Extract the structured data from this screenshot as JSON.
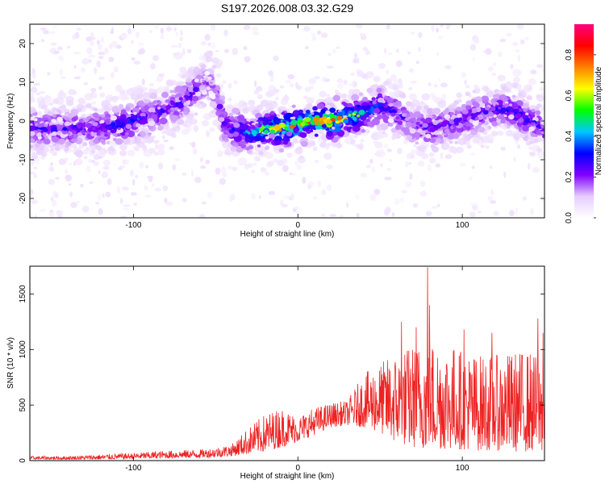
{
  "figure": {
    "title": "S197.2026.008.03.32.G29"
  },
  "chart_data": [
    {
      "type": "heatmap",
      "xlabel": "Height of straight line (km)",
      "ylabel": "Frequency (Hz)",
      "xlim": [
        -163,
        150
      ],
      "ylim": [
        -25,
        25
      ],
      "x_ticks": [
        -100,
        0,
        100
      ],
      "y_ticks": [
        -20,
        -10,
        0,
        10,
        20
      ],
      "grid": false,
      "colorbar": {
        "label": "Normalized spectral amplitude",
        "range": [
          0,
          0.95
        ],
        "ticks": [
          0.0,
          0.2,
          0.4,
          0.6,
          0.8
        ],
        "colors": [
          "#ffffff",
          "#e6ccff",
          "#8000ff",
          "#0000ff",
          "#00c8ff",
          "#00ff00",
          "#ffff00",
          "#ff8000",
          "#ff0000",
          "#ff0080"
        ]
      },
      "ridge": {
        "x": [
          -140,
          -120,
          -100,
          -90,
          -80,
          -70,
          -60,
          -55,
          -50,
          -45,
          -40,
          -30,
          -20,
          -10,
          0,
          10,
          20,
          30,
          40,
          50,
          60,
          70,
          80,
          90,
          100,
          110,
          120,
          130,
          140,
          150
        ],
        "frequency": [
          -2,
          -2,
          0,
          1,
          3,
          5,
          9,
          10,
          8,
          -1,
          -2,
          -3,
          -2,
          -2,
          -1,
          0,
          0,
          1,
          2,
          4,
          2,
          -1,
          -2,
          -1,
          0,
          2,
          3,
          3,
          0,
          -2
        ],
        "peak_amplitude": [
          0.3,
          0.3,
          0.4,
          0.35,
          0.3,
          0.3,
          0.25,
          0.2,
          0.2,
          0.3,
          0.35,
          0.5,
          0.7,
          0.8,
          0.75,
          0.85,
          0.95,
          0.7,
          0.55,
          0.4,
          0.3,
          0.25,
          0.3,
          0.25,
          0.3,
          0.3,
          0.3,
          0.35,
          0.3,
          0.3
        ]
      }
    },
    {
      "type": "line",
      "xlabel": "Height of straight line (km)",
      "ylabel": "SNR (10 * v/v)",
      "xlim": [
        -163,
        150
      ],
      "ylim": [
        0,
        1750
      ],
      "x_ticks": [
        -100,
        0,
        100
      ],
      "y_ticks": [
        0,
        500,
        1000,
        1500
      ],
      "grid": false,
      "color": "#ee2222",
      "envelope": {
        "x": [
          -163,
          -140,
          -120,
          -100,
          -80,
          -60,
          -50,
          -40,
          -30,
          -20,
          -10,
          0,
          10,
          20,
          30,
          40,
          50,
          60,
          70,
          80,
          90,
          100,
          110,
          120,
          130,
          140,
          150
        ],
        "low": [
          10,
          10,
          10,
          15,
          20,
          25,
          30,
          40,
          60,
          80,
          120,
          170,
          230,
          300,
          320,
          300,
          250,
          150,
          120,
          100,
          100,
          100,
          90,
          90,
          80,
          80,
          80
        ],
        "high": [
          40,
          40,
          55,
          70,
          90,
          100,
          120,
          150,
          300,
          420,
          480,
          400,
          480,
          520,
          540,
          780,
          880,
          980,
          1050,
          1100,
          1080,
          1000,
          960,
          950,
          980,
          1000,
          900
        ]
      },
      "spikes": [
        {
          "x": 79,
          "y": 1740
        },
        {
          "x": 80,
          "y": 1400
        },
        {
          "x": 63,
          "y": 1250
        },
        {
          "x": 146,
          "y": 1280
        },
        {
          "x": 149,
          "y": 1150
        },
        {
          "x": 118,
          "y": 1150
        },
        {
          "x": 72,
          "y": 1200
        },
        {
          "x": 101,
          "y": 1180
        }
      ]
    }
  ]
}
